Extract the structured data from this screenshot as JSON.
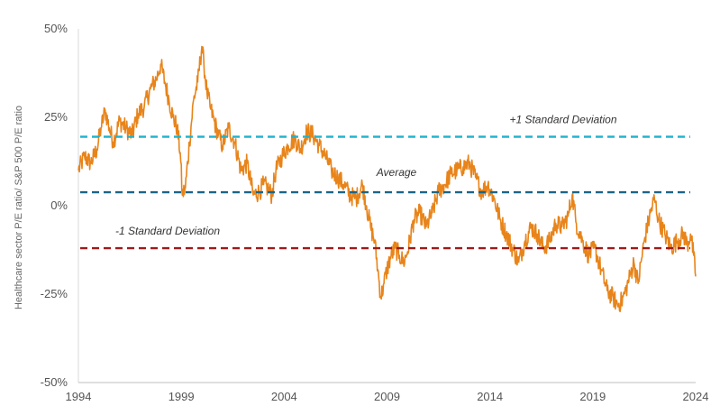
{
  "chart_data": {
    "type": "line",
    "title": "",
    "xlabel": "",
    "ylabel": "Healthcare sector P/E ratio/ S&P 500 P/E ratio",
    "xlim": [
      1994,
      2024
    ],
    "ylim": [
      -50,
      50
    ],
    "x_ticks": [
      "1994",
      "1999",
      "2004",
      "2009",
      "2014",
      "2019",
      "2024"
    ],
    "y_ticks": [
      "50%",
      "25%",
      "0%",
      "-25%",
      "-50%"
    ],
    "grid": false,
    "series": [
      {
        "name": "Healthcare sector P/E ratio / S&P 500 P/E ratio",
        "color": "#E8841A",
        "x": [
          1994.0,
          1994.3,
          1994.6,
          1994.9,
          1995.1,
          1995.3,
          1995.5,
          1995.7,
          1996.0,
          1996.3,
          1996.6,
          1996.9,
          1997.2,
          1997.5,
          1997.8,
          1998.0,
          1998.2,
          1998.4,
          1998.6,
          1998.8,
          1998.95,
          1999.05,
          1999.2,
          1999.4,
          1999.6,
          1999.8,
          2000.0,
          2000.1,
          2000.25,
          2000.4,
          2000.6,
          2000.8,
          2001.0,
          2001.3,
          2001.6,
          2001.9,
          2002.2,
          2002.5,
          2002.8,
          2003.0,
          2003.2,
          2003.4,
          2003.6,
          2003.9,
          2004.2,
          2004.5,
          2004.8,
          2005.1,
          2005.4,
          2005.7,
          2006.0,
          2006.3,
          2006.6,
          2006.9,
          2007.2,
          2007.5,
          2007.8,
          2008.0,
          2008.2,
          2008.4,
          2008.55,
          2008.7,
          2008.85,
          2009.0,
          2009.2,
          2009.4,
          2009.6,
          2009.8,
          2010.0,
          2010.3,
          2010.6,
          2010.9,
          2011.2,
          2011.5,
          2011.8,
          2012.1,
          2012.4,
          2012.7,
          2013.0,
          2013.3,
          2013.6,
          2013.9,
          2014.2,
          2014.5,
          2014.8,
          2015.1,
          2015.4,
          2015.7,
          2016.0,
          2016.3,
          2016.6,
          2016.9,
          2017.2,
          2017.5,
          2017.8,
          2018.0,
          2018.2,
          2018.5,
          2018.8,
          2019.1,
          2019.4,
          2019.7,
          2020.0,
          2020.2,
          2020.4,
          2020.6,
          2020.8,
          2021.0,
          2021.2,
          2021.5,
          2021.8,
          2022.0,
          2022.2,
          2022.5,
          2022.8,
          2023.1,
          2023.4,
          2023.6,
          2023.75,
          2023.9,
          2024.0
        ],
        "y": [
          10,
          14,
          12,
          16,
          22,
          27,
          22,
          18,
          24,
          22,
          20,
          26,
          28,
          33,
          36,
          40,
          35,
          30,
          25,
          22,
          15,
          3,
          5,
          18,
          30,
          35,
          45,
          40,
          32,
          28,
          24,
          20,
          17,
          22,
          18,
          10,
          12,
          3,
          4,
          6,
          5,
          3,
          10,
          14,
          17,
          19,
          16,
          21,
          20,
          17,
          14,
          10,
          8,
          6,
          3,
          2,
          6,
          0,
          -6,
          -10,
          -18,
          -26,
          -22,
          -18,
          -14,
          -12,
          -14,
          -16,
          -13,
          -4,
          -2,
          -6,
          -2,
          4,
          6,
          9,
          10,
          11,
          12,
          8,
          4,
          6,
          2,
          -4,
          -8,
          -12,
          -16,
          -10,
          -6,
          -8,
          -12,
          -10,
          -5,
          -6,
          -3,
          3,
          -5,
          -10,
          -14,
          -12,
          -18,
          -24,
          -26,
          -28,
          -27,
          -24,
          -20,
          -16,
          -22,
          -10,
          -2,
          2,
          -4,
          -8,
          -12,
          -10,
          -8,
          -11,
          -8,
          -14,
          -20
        ]
      }
    ],
    "reference_lines": [
      {
        "name": "+1 Standard Deviation",
        "label": "+1 Standard Deviation",
        "y": 19.5,
        "color": "#1FB2CC"
      },
      {
        "name": "Average",
        "label": "Average",
        "y": 3.8,
        "color": "#1A6587"
      },
      {
        "name": "-1 Standard Deviation",
        "label": "-1 Standard Deviation",
        "y": -12,
        "color": "#9E1A1A"
      }
    ]
  }
}
